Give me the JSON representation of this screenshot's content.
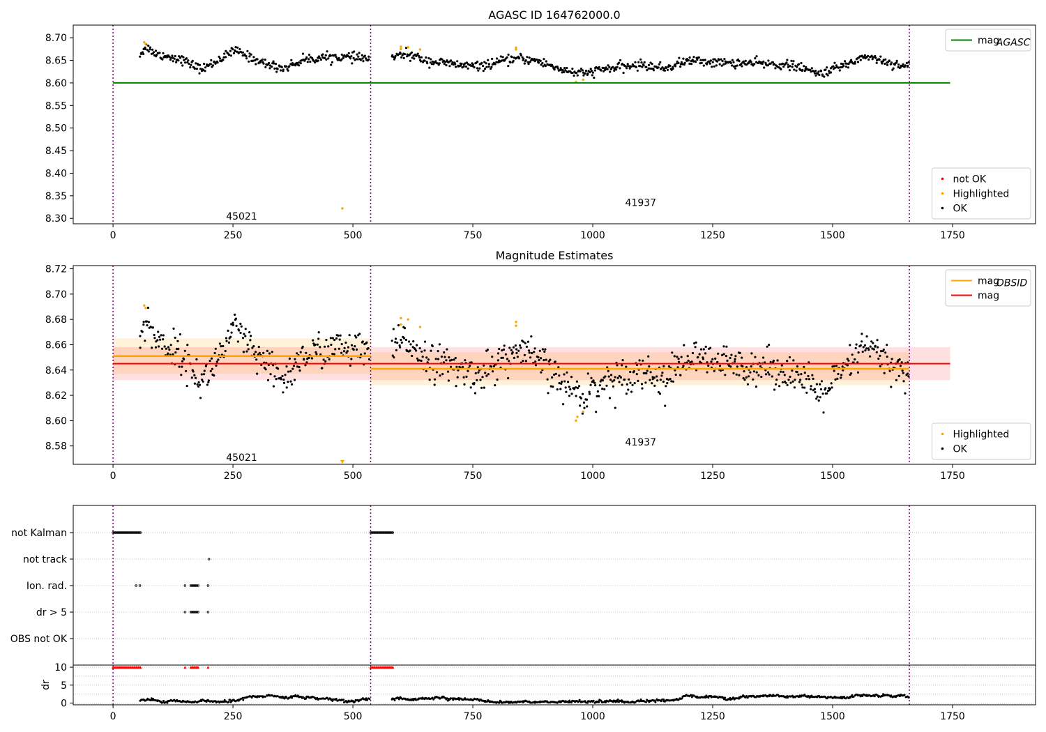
{
  "chart_data": [
    {
      "type": "scatter",
      "title": "AGASC ID 164762000.0",
      "xlabel": "",
      "ylabel": "",
      "xlim": [
        -83,
        1923
      ],
      "ylim": [
        8.288,
        8.728
      ],
      "xticks": [
        0,
        250,
        500,
        750,
        1000,
        1250,
        1500,
        1750
      ],
      "yticks": [
        8.3,
        8.35,
        8.4,
        8.45,
        8.5,
        8.55,
        8.6,
        8.65,
        8.7
      ],
      "obs_boundaries": [
        0,
        537,
        1660
      ],
      "obs_labels": [
        {
          "text": "45021",
          "x": 268,
          "y": 8.305
        },
        {
          "text": "41937",
          "x": 1100,
          "y": 8.335
        }
      ],
      "lines": [
        {
          "name": "mag_AGASC",
          "y": 8.6,
          "x": [
            0,
            1745
          ],
          "color": "#008000"
        }
      ],
      "series": [
        {
          "name": "not OK",
          "color": "#ff0000",
          "points": []
        },
        {
          "name": "Highlighted",
          "color": "#ffa500",
          "points": [
            [
              65,
              8.69
            ],
            [
              68,
              8.686
            ],
            [
              478,
              8.322
            ],
            [
              600,
              8.68
            ],
            [
              600,
              8.675
            ],
            [
              615,
              8.679
            ],
            [
              640,
              8.674
            ],
            [
              840,
              8.678
            ],
            [
              840,
              8.674
            ],
            [
              965,
              8.602
            ],
            [
              980,
              8.607
            ]
          ]
        },
        {
          "name": "OK",
          "color": "#000000",
          "segments": [
            {
              "x0": 55,
              "x1": 535,
              "n": 280,
              "noise": 0.005,
              "curve": [
                [
                  55,
                  8.662
                ],
                [
                  70,
                  8.68
                ],
                [
                  90,
                  8.664
                ],
                [
                  140,
                  8.653
                ],
                [
                  185,
                  8.63
                ],
                [
                  215,
                  8.648
                ],
                [
                  255,
                  8.672
                ],
                [
                  310,
                  8.645
                ],
                [
                  355,
                  8.632
                ],
                [
                  400,
                  8.652
                ],
                [
                  460,
                  8.658
                ],
                [
                  535,
                  8.654
                ]
              ]
            },
            {
              "x0": 580,
              "x1": 1660,
              "n": 620,
              "noise": 0.005,
              "curve": [
                [
                  580,
                  8.655
                ],
                [
                  610,
                  8.664
                ],
                [
                  660,
                  8.648
                ],
                [
                  720,
                  8.64
                ],
                [
                  760,
                  8.636
                ],
                [
                  840,
                  8.654
                ],
                [
                  880,
                  8.65
                ],
                [
                  940,
                  8.628
                ],
                [
                  980,
                  8.62
                ],
                [
                  1020,
                  8.63
                ],
                [
                  1100,
                  8.64
                ],
                [
                  1150,
                  8.632
                ],
                [
                  1200,
                  8.65
                ],
                [
                  1260,
                  8.645
                ],
                [
                  1350,
                  8.643
                ],
                [
                  1420,
                  8.638
                ],
                [
                  1470,
                  8.62
                ],
                [
                  1520,
                  8.637
                ],
                [
                  1570,
                  8.66
                ],
                [
                  1620,
                  8.644
                ],
                [
                  1660,
                  8.636
                ]
              ]
            }
          ]
        }
      ],
      "legend": [
        {
          "position": "top-right",
          "entries": [
            {
              "label": "mag",
              "sub": "AGASC",
              "kind": "line",
              "color": "#008000"
            }
          ]
        },
        {
          "position": "bottom-right",
          "entries": [
            {
              "label": "not OK",
              "kind": "dot",
              "color": "#ff0000"
            },
            {
              "label": "Highlighted",
              "kind": "dot",
              "color": "#ffa500"
            },
            {
              "label": "OK",
              "kind": "dot",
              "color": "#000000"
            }
          ]
        }
      ]
    },
    {
      "type": "scatter",
      "title": "Magnitude Estimates",
      "xlabel": "",
      "ylabel": "",
      "xlim": [
        -83,
        1923
      ],
      "ylim": [
        8.5655,
        8.7225
      ],
      "xticks": [
        0,
        250,
        500,
        750,
        1000,
        1250,
        1500,
        1750
      ],
      "yticks": [
        8.58,
        8.6,
        8.62,
        8.64,
        8.66,
        8.68,
        8.7,
        8.72
      ],
      "obs_boundaries": [
        0,
        537,
        1660
      ],
      "obs_labels": [
        {
          "text": "45021",
          "x": 268,
          "y": 8.571
        },
        {
          "text": "41937",
          "x": 1100,
          "y": 8.583
        }
      ],
      "lines": [
        {
          "name": "mag_OBSID",
          "color": "#ffa500",
          "segments": [
            {
              "x": [
                0,
                537
              ],
              "y": 8.651,
              "band": 0.014
            },
            {
              "x": [
                537,
                1660
              ],
              "y": 8.641,
              "band": 0.013
            }
          ]
        },
        {
          "name": "mag",
          "color": "#ff0000",
          "y": 8.645,
          "x": [
            0,
            1745
          ],
          "band": 0.013
        }
      ],
      "series": [
        {
          "name": "Highlighted",
          "color": "#ffa500",
          "points": [
            [
              65,
              8.691
            ],
            [
              68,
              8.689
            ],
            [
              600,
              8.681
            ],
            [
              600,
              8.676
            ],
            [
              615,
              8.68
            ],
            [
              640,
              8.674
            ],
            [
              840,
              8.678
            ],
            [
              840,
              8.675
            ],
            [
              965,
              8.6
            ],
            [
              968,
              8.603
            ],
            [
              980,
              8.607
            ],
            [
              478,
              8.567
            ]
          ]
        },
        {
          "name": "OK",
          "color": "#000000",
          "segments": [
            {
              "x0": 55,
              "x1": 535,
              "n": 280,
              "noise": 0.007,
              "curve": [
                [
                  55,
                  8.662
                ],
                [
                  70,
                  8.68
                ],
                [
                  90,
                  8.664
                ],
                [
                  140,
                  8.653
                ],
                [
                  185,
                  8.63
                ],
                [
                  215,
                  8.648
                ],
                [
                  255,
                  8.672
                ],
                [
                  310,
                  8.645
                ],
                [
                  355,
                  8.632
                ],
                [
                  400,
                  8.652
                ],
                [
                  460,
                  8.658
                ],
                [
                  535,
                  8.654
                ]
              ]
            },
            {
              "x0": 580,
              "x1": 1660,
              "n": 620,
              "noise": 0.007,
              "curve": [
                [
                  580,
                  8.655
                ],
                [
                  610,
                  8.664
                ],
                [
                  660,
                  8.648
                ],
                [
                  720,
                  8.64
                ],
                [
                  760,
                  8.636
                ],
                [
                  840,
                  8.654
                ],
                [
                  880,
                  8.65
                ],
                [
                  940,
                  8.628
                ],
                [
                  980,
                  8.62
                ],
                [
                  1020,
                  8.63
                ],
                [
                  1100,
                  8.64
                ],
                [
                  1150,
                  8.632
                ],
                [
                  1200,
                  8.65
                ],
                [
                  1260,
                  8.645
                ],
                [
                  1350,
                  8.643
                ],
                [
                  1420,
                  8.638
                ],
                [
                  1470,
                  8.62
                ],
                [
                  1520,
                  8.637
                ],
                [
                  1570,
                  8.66
                ],
                [
                  1620,
                  8.644
                ],
                [
                  1660,
                  8.636
                ]
              ]
            }
          ]
        }
      ],
      "legend": [
        {
          "position": "top-right",
          "entries": [
            {
              "label": "mag",
              "sub": "OBSID",
              "kind": "line",
              "color": "#ffa500"
            },
            {
              "label": "mag",
              "kind": "line",
              "color": "#ff0000"
            }
          ]
        },
        {
          "position": "bottom-right",
          "entries": [
            {
              "label": "Highlighted",
              "kind": "dot",
              "color": "#ffa500"
            },
            {
              "label": "OK",
              "kind": "dot",
              "color": "#000000"
            }
          ]
        }
      ]
    },
    {
      "type": "scatter",
      "title": "",
      "xlabel": "",
      "ylabel": "",
      "xlim": [
        -83,
        1923
      ],
      "categories": [
        "not Kalman",
        "not track",
        "Ion. rad.",
        "dr > 5",
        "OBS not OK"
      ],
      "flags": {
        "not Kalman": [
          [
            0,
            58
          ],
          [
            537,
            585
          ]
        ],
        "not track": [
          [
            200,
            200
          ]
        ],
        "Ion. rad.": [
          [
            48,
            48
          ],
          [
            56,
            56
          ],
          [
            150,
            150
          ],
          [
            162,
            178
          ],
          [
            198,
            198
          ]
        ],
        "dr > 5": [
          [
            150,
            150
          ],
          [
            162,
            178
          ],
          [
            198,
            198
          ]
        ],
        "OBS not OK": []
      },
      "obs_boundaries": [
        0,
        537,
        1660
      ]
    },
    {
      "type": "scatter",
      "title": "",
      "xlabel": "",
      "ylabel": "dr",
      "xlim": [
        -83,
        1923
      ],
      "ylim": [
        -0.5,
        10.6
      ],
      "xticks": [
        0,
        250,
        500,
        750,
        1000,
        1250,
        1500,
        1750
      ],
      "yticks": [
        0,
        5,
        10
      ],
      "obs_boundaries": [
        0,
        537,
        1660
      ],
      "series": [
        {
          "name": "not OK",
          "color": "#ff0000",
          "y": 10,
          "ranges": [
            [
              0,
              58
            ],
            [
              150,
              150
            ],
            [
              162,
              178
            ],
            [
              198,
              198
            ],
            [
              537,
              585
            ]
          ]
        },
        {
          "name": "OK",
          "color": "#000000",
          "segments": [
            {
              "x0": 55,
              "x1": 535,
              "n": 260,
              "base": 0.9,
              "noise": 0.45
            },
            {
              "x0": 580,
              "x1": 1660,
              "n": 620,
              "base": 1.0,
              "noise": 0.55
            }
          ]
        }
      ]
    }
  ]
}
